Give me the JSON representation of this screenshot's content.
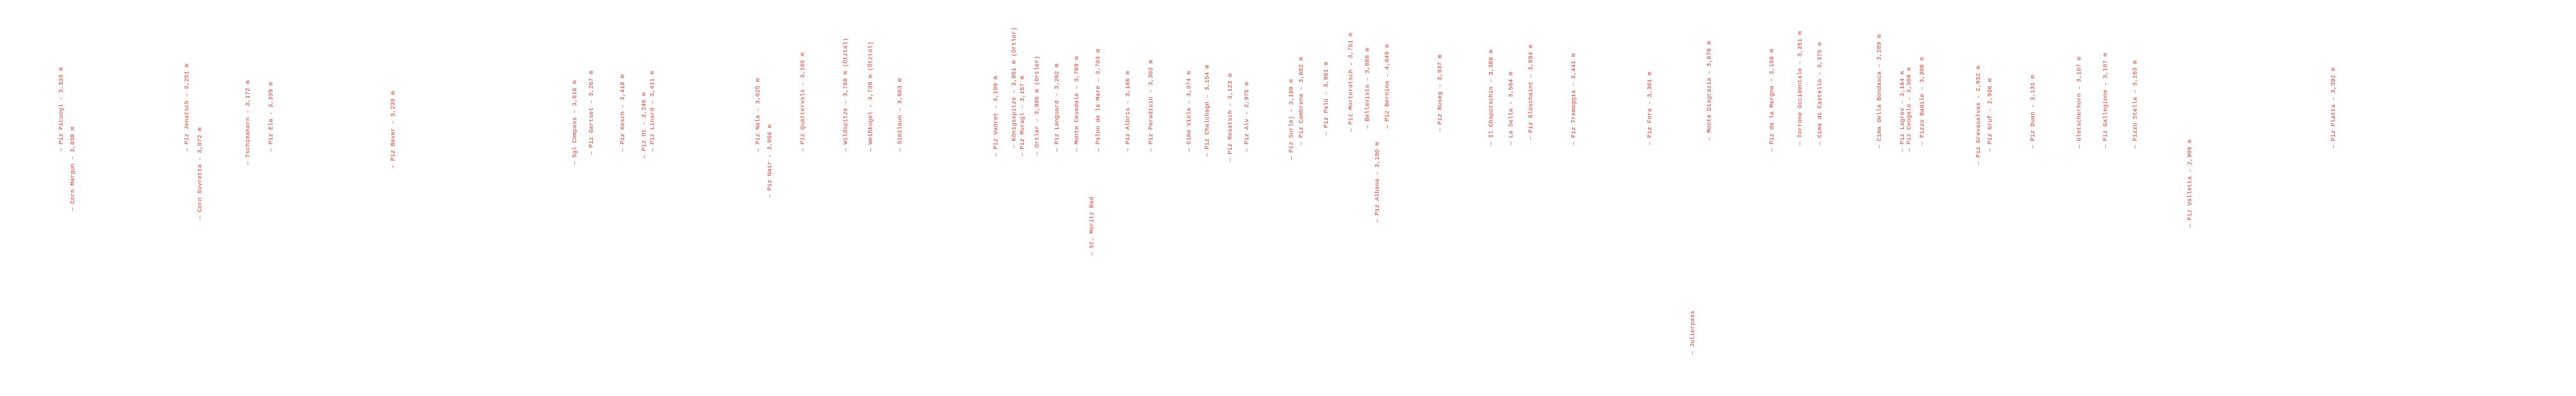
{
  "labels": [
    "— Piz Picuogl – 3,333 m",
    "— Corn Margun – 3,038 m",
    "— Piz Jenatsch – 3,251 m",
    "— Corn Suvretta – 3,072 m",
    "— Tschimahorn – 3,172 m",
    "— Piz Ela – 3,339 m",
    "— Piz Bever – 3,230 m",
    "— Sgl Compass – 3,016 m",
    "— Piz Gartset – 3,267 m",
    "— Piz Kesch – 3,418 m",
    "— Piz Ot – 3,246 m",
    "— Piz Linard – 3,411 m",
    "— Piz Nala – 3,025 m",
    "— Piz Nair – 3,056 m",
    "— Piz Quattervals – 3,165 m",
    "— Wildspitze – 3,768 m (Ötztal)",
    "— Weißkugel – 3,739 m (Ötztal)",
    "— Similaun – 3,603 m",
    "— Piz Vadret – 3,199 m",
    "— Königsspitze – 3,851 m (Ortler)",
    "— Piz Muragl – 3,157 m",
    "— Ortler – 3,905 m (Ortler)",
    "— Piz Languard – 3,262 m",
    "— Monte Cevedale – 3,769 m",
    "— St. Moritz Bad",
    "— Palon de la Mare – 3,703 m",
    "— Piz Albris – 3,166 m",
    "— Piz Paradisin – 3,302 m",
    "— Cima Viola – 3,374 m",
    "— Piz Chalchagn – 3,154 m",
    "— Piz Rosatsch – 3,123 m",
    "— Piz Alv – 2,975 m",
    "— Piz Surlej – 3,188 m",
    "— Piz Cambrena – 3,602 m",
    "— Piz Palü – 3,901 m",
    "— Piz Morteratsch – 3,751 m",
    "— Bellavista – 3,888 m",
    "— Piz Albana – 3,100 m",
    "— Piz Bernina – 4,049 m",
    "— Piz Roseg – 3,937 m",
    "— Il Chapütschin – 3,386 m",
    "— La Sella – 3,584 m",
    "— Piz Glüschaint – 3,594 m",
    "— Piz Tremoggia – 3,441 m",
    "— Piz Fora – 3,361 m",
    "— Julierpass",
    "— Monte Disgrazia – 3,678 m",
    "— Piz da la Margna – 3,158 m",
    "— Torrone Occidentale – 3,351 m",
    "— Cima di Castello – 3,375 m",
    "— Cima della Bondasca – 3,289 m",
    "— Piz Lagrev – 3,164 m",
    "— Piz Cengalo – 3,369 m",
    "— Pizzo Badile – 3,308 m",
    "— Piz Grevasalvas – 2,932 m",
    "— Piz Gruf – 2,936 m",
    "— Piz Duan – 3,131 m",
    "— Gletscherhorn – 3,107 m",
    "— Piz Gallegione – 3,107 m",
    "— Pizzo Stella – 3,163 m",
    "— Piz Valletta – 2,909 m",
    "— Piz Platta – 3,392 m"
  ]
}
